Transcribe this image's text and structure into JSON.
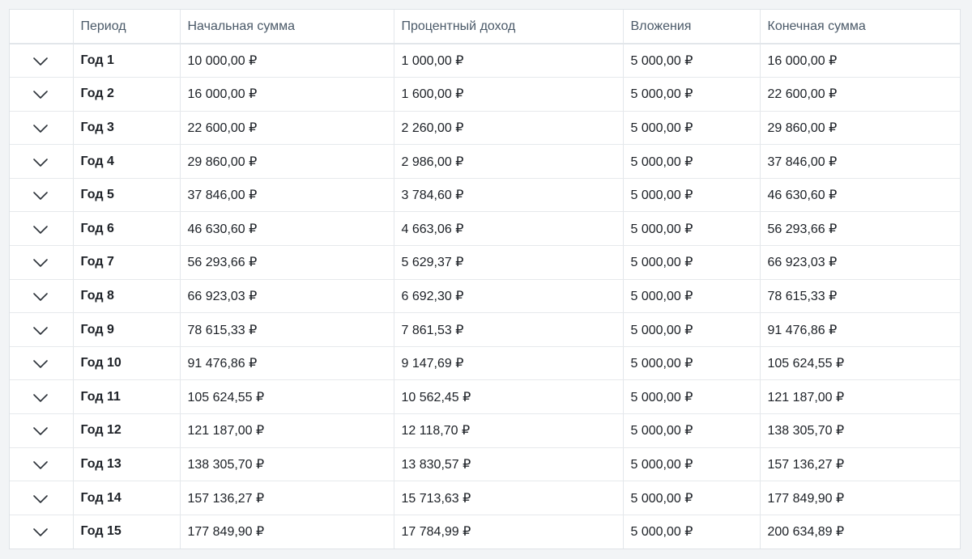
{
  "table": {
    "headers": {
      "toggle": "",
      "period": "Период",
      "start_amount": "Начальная сумма",
      "interest_income": "Процентный доход",
      "deposits": "Вложения",
      "end_amount": "Конечная сумма"
    },
    "toggle_icon": "chevron-down-icon",
    "rows": [
      {
        "period": "Год 1",
        "start": "10 000,00 ₽",
        "interest": "1 000,00 ₽",
        "deposits": "5 000,00 ₽",
        "end": "16 000,00 ₽"
      },
      {
        "period": "Год 2",
        "start": "16 000,00 ₽",
        "interest": "1 600,00 ₽",
        "deposits": "5 000,00 ₽",
        "end": "22 600,00 ₽"
      },
      {
        "period": "Год 3",
        "start": "22 600,00 ₽",
        "interest": "2 260,00 ₽",
        "deposits": "5 000,00 ₽",
        "end": "29 860,00 ₽"
      },
      {
        "period": "Год 4",
        "start": "29 860,00 ₽",
        "interest": "2 986,00 ₽",
        "deposits": "5 000,00 ₽",
        "end": "37 846,00 ₽"
      },
      {
        "period": "Год 5",
        "start": "37 846,00 ₽",
        "interest": "3 784,60 ₽",
        "deposits": "5 000,00 ₽",
        "end": "46 630,60 ₽"
      },
      {
        "period": "Год 6",
        "start": "46 630,60 ₽",
        "interest": "4 663,06 ₽",
        "deposits": "5 000,00 ₽",
        "end": "56 293,66 ₽"
      },
      {
        "period": "Год 7",
        "start": "56 293,66 ₽",
        "interest": "5 629,37 ₽",
        "deposits": "5 000,00 ₽",
        "end": "66 923,03 ₽"
      },
      {
        "period": "Год 8",
        "start": "66 923,03 ₽",
        "interest": "6 692,30 ₽",
        "deposits": "5 000,00 ₽",
        "end": "78 615,33 ₽"
      },
      {
        "period": "Год 9",
        "start": "78 615,33 ₽",
        "interest": "7 861,53 ₽",
        "deposits": "5 000,00 ₽",
        "end": "91 476,86 ₽"
      },
      {
        "period": "Год 10",
        "start": "91 476,86 ₽",
        "interest": "9 147,69 ₽",
        "deposits": "5 000,00 ₽",
        "end": "105 624,55 ₽"
      },
      {
        "period": "Год 11",
        "start": "105 624,55 ₽",
        "interest": "10 562,45 ₽",
        "deposits": "5 000,00 ₽",
        "end": "121 187,00 ₽"
      },
      {
        "period": "Год 12",
        "start": "121 187,00 ₽",
        "interest": "12 118,70 ₽",
        "deposits": "5 000,00 ₽",
        "end": "138 305,70 ₽"
      },
      {
        "period": "Год 13",
        "start": "138 305,70 ₽",
        "interest": "13 830,57 ₽",
        "deposits": "5 000,00 ₽",
        "end": "157 136,27 ₽"
      },
      {
        "period": "Год 14",
        "start": "157 136,27 ₽",
        "interest": "15 713,63 ₽",
        "deposits": "5 000,00 ₽",
        "end": "177 849,90 ₽"
      },
      {
        "period": "Год 15",
        "start": "177 849,90 ₽",
        "interest": "17 784,99 ₽",
        "deposits": "5 000,00 ₽",
        "end": "200 634,89 ₽"
      }
    ]
  }
}
